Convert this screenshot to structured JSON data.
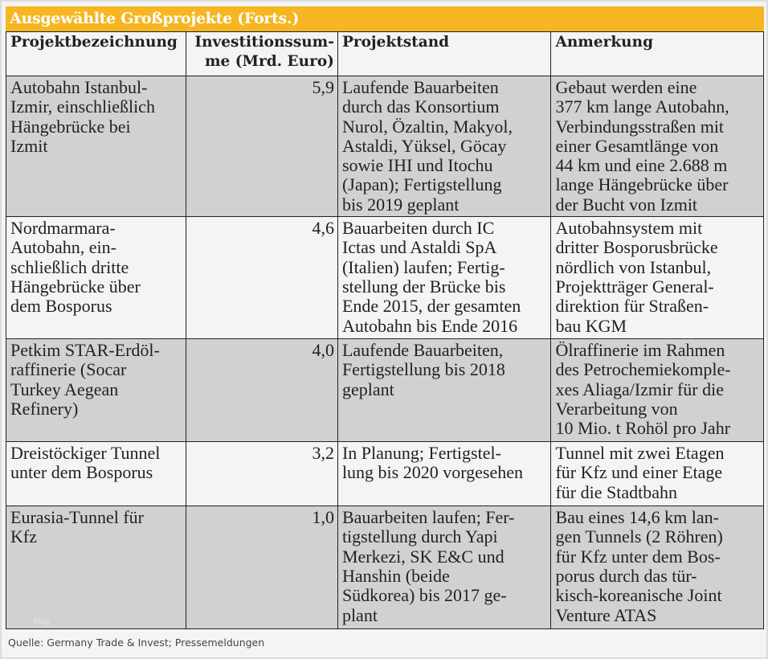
{
  "title": "Ausgewählte Großprojekte (Forts.)",
  "colors": {
    "title_bar": "#f5b622",
    "title_text": "#ffffff",
    "row_shaded": "#d0d1d3",
    "row_plain": "#f4f4f4",
    "border": "#222222"
  },
  "table": {
    "headers": {
      "project": "Projektbezeichnung",
      "investment": [
        "Investitionssum-",
        "me (Mrd. Euro)"
      ],
      "status": "Projektstand",
      "note": "Anmerkung"
    },
    "rows": [
      {
        "project": [
          "Autobahn Istanbul-",
          "Izmir, einschließlich",
          "Hängebrücke bei",
          "Izmit"
        ],
        "investment": "5,9",
        "status": [
          "Laufende Bauarbeiten",
          "durch das Konsortium",
          "Nurol, Özaltin, Makyol,",
          "Astaldi, Yüksel, Göcay",
          "sowie IHI und Itochu",
          "(Japan); Fertigstellung",
          "bis 2019 geplant"
        ],
        "note": [
          "Gebaut werden eine",
          "377 km lange Autobahn,",
          "Verbindungsstraßen mit",
          "einer Gesamtlänge von",
          "44 km und eine 2.688 m",
          "lange Hängebrücke über",
          "der Bucht von Izmit"
        ]
      },
      {
        "project": [
          "Nordmarmara-",
          "Autobahn, ein-",
          "schließlich dritte",
          "Hängebrücke über",
          "dem Bosporus"
        ],
        "investment": "4,6",
        "status": [
          "Bauarbeiten durch IC",
          "Ictas und Astaldi SpA",
          "(Italien) laufen; Fertig-",
          "stellung der Brücke bis",
          "Ende 2015, der gesamten",
          "Autobahn bis Ende 2016"
        ],
        "note": [
          "Autobahnsystem mit",
          "dritter Bosporusbrücke",
          "nördlich von Istanbul,",
          "Projektträger General-",
          "direktion für Straßen-",
          "bau KGM"
        ]
      },
      {
        "project": [
          "Petkim STAR-Erdöl-",
          "raffinerie (Socar",
          "Turkey Aegean",
          "Refinery)"
        ],
        "investment": "4,0",
        "status": [
          "Laufende Bauarbeiten,",
          "Fertigstellung bis 2018",
          "geplant"
        ],
        "note": [
          "Ölraffinerie im Rahmen",
          "des Petrochemiekomple-",
          "xes Aliaga/Izmir für die",
          "Verarbeitung von",
          "10 Mio. t Rohöl pro Jahr"
        ]
      },
      {
        "project": [
          "Dreistöckiger Tunnel",
          "unter dem Bosporus"
        ],
        "investment": "3,2",
        "status": [
          "In Planung; Fertigstel-",
          "lung bis 2020 vorgesehen"
        ],
        "note": [
          "Tunnel mit zwei Etagen",
          "für Kfz und einer Etage",
          "für die Stadtbahn"
        ]
      },
      {
        "project": [
          "Eurasia-Tunnel für",
          "Kfz"
        ],
        "investment": "1,0",
        "status": [
          "Bauarbeiten laufen; Fer-",
          "tigstellung durch Yapi",
          "Merkezi, SK E&C und",
          "Hanshin (beide",
          "Südkorea) bis 2017 ge-",
          "plant"
        ],
        "note": [
          "Bau eines 14,6 km lan-",
          "gen Tunnels (2 Röhren)",
          "für Kfz unter dem Bos-",
          "porus durch das tür-",
          "kisch-koreanische Joint",
          "Venture ATAS"
        ]
      }
    ]
  },
  "watermark": "blog",
  "footer": {
    "source": "Quelle: Germany Trade & Invest; Pressemeldungen"
  }
}
